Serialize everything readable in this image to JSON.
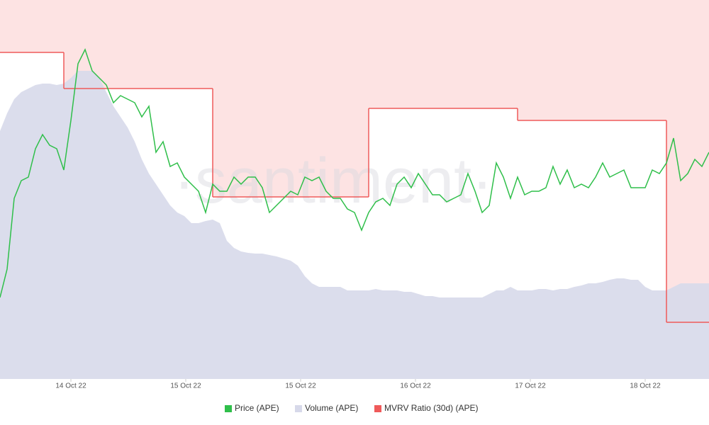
{
  "chart_data": {
    "type": "line",
    "watermark": "·santiment·",
    "xlim": [
      0,
      100
    ],
    "xticks": [
      {
        "value": 10,
        "label": "14 Oct 22"
      },
      {
        "value": 26.2,
        "label": "15 Oct 22"
      },
      {
        "value": 42.4,
        "label": "15 Oct 22"
      },
      {
        "value": 58.6,
        "label": "16 Oct 22"
      },
      {
        "value": 74.8,
        "label": "17 Oct 22"
      },
      {
        "value": 91,
        "label": "18 Oct 22"
      }
    ],
    "ylim": [
      0,
      535
    ],
    "series": [
      {
        "name": "Price (APE)",
        "color": "#2fbf4a",
        "values": [
          115,
          155,
          255,
          280,
          285,
          325,
          345,
          330,
          325,
          295,
          365,
          445,
          465,
          435,
          425,
          415,
          390,
          400,
          395,
          390,
          370,
          385,
          320,
          335,
          300,
          305,
          285,
          275,
          265,
          235,
          275,
          265,
          265,
          285,
          275,
          285,
          285,
          270,
          235,
          245,
          255,
          265,
          260,
          285,
          280,
          285,
          265,
          255,
          255,
          240,
          235,
          210,
          235,
          250,
          255,
          245,
          275,
          285,
          270,
          290,
          275,
          260,
          260,
          250,
          255,
          260,
          290,
          265,
          235,
          245,
          305,
          285,
          255,
          285,
          260,
          265,
          265,
          270,
          300,
          275,
          295,
          270,
          275,
          270,
          285,
          305,
          285,
          290,
          295,
          270,
          270,
          270,
          295,
          290,
          305,
          340,
          280,
          290,
          310,
          300,
          320
        ]
      },
      {
        "name": "Volume (APE)",
        "color": "#d7d9ea",
        "values": [
          350,
          375,
          395,
          405,
          410,
          415,
          417,
          417,
          415,
          417,
          425,
          435,
          435,
          435,
          425,
          405,
          385,
          370,
          355,
          335,
          310,
          290,
          275,
          260,
          245,
          235,
          230,
          220,
          220,
          223,
          225,
          220,
          195,
          185,
          180,
          178,
          177,
          177,
          175,
          173,
          170,
          167,
          160,
          145,
          135,
          130,
          130,
          130,
          130,
          125,
          125,
          125,
          125,
          127,
          125,
          125,
          125,
          123,
          123,
          120,
          117,
          117,
          115,
          115,
          115,
          115,
          115,
          115,
          115,
          120,
          125,
          125,
          130,
          125,
          125,
          125,
          127,
          127,
          125,
          127,
          127,
          130,
          132,
          135,
          135,
          137,
          140,
          142,
          142,
          140,
          140,
          130,
          125,
          125,
          125,
          130,
          135,
          135,
          135,
          135,
          135
        ]
      },
      {
        "name": "MVRV Ratio (30d) (APE)",
        "color": "#ef5a5a",
        "values": [
          461,
          461,
          461,
          461,
          461,
          461,
          461,
          461,
          461,
          410,
          410,
          410,
          410,
          410,
          410,
          410,
          410,
          410,
          410,
          410,
          410,
          410,
          410,
          410,
          410,
          410,
          410,
          410,
          410,
          410,
          257,
          257,
          257,
          257,
          257,
          257,
          257,
          257,
          257,
          257,
          257,
          257,
          257,
          257,
          257,
          257,
          257,
          257,
          257,
          257,
          257,
          257,
          382,
          382,
          382,
          382,
          382,
          382,
          382,
          382,
          382,
          382,
          382,
          382,
          382,
          382,
          382,
          382,
          382,
          382,
          382,
          382,
          382,
          365,
          365,
          365,
          365,
          365,
          365,
          365,
          365,
          365,
          365,
          365,
          365,
          365,
          365,
          365,
          365,
          365,
          365,
          365,
          365,
          365,
          80,
          80,
          80,
          80,
          80,
          80,
          80
        ]
      }
    ]
  }
}
